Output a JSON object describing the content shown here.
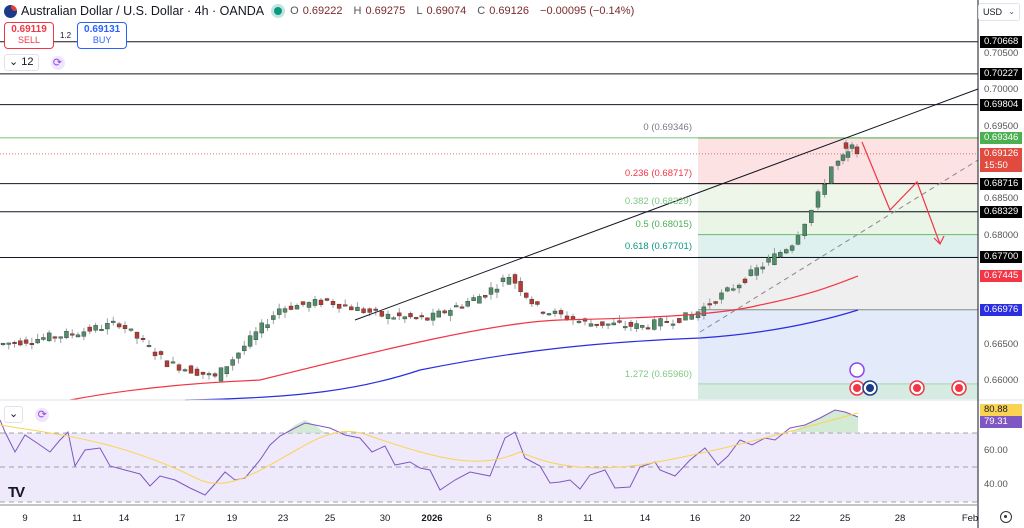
{
  "header": {
    "symbol_title": "Australian Dollar / U.S. Dollar · 4h · OANDA",
    "ohlc": {
      "open_label": "O",
      "open": "0.69222",
      "high_label": "H",
      "high": "0.69275",
      "low_label": "L",
      "low": "0.69074",
      "close_label": "C",
      "close": "0.69126",
      "change": "−0.00095 (−0.14%)"
    }
  },
  "trade": {
    "sell_price": "0.69119",
    "sell_label": "SELL",
    "spread": "1.2",
    "buy_price": "0.69131",
    "buy_label": "BUY"
  },
  "toolbar": {
    "interval_label": "⌄ 12",
    "rsi_collapse": "⌄"
  },
  "currency_selector": "USD",
  "colors": {
    "up": "#4e8f6a",
    "down": "#b93a30",
    "ma_red": "#f23645",
    "ma_blue": "#2a2ee0",
    "rsi": "#7e57c2",
    "rsi_ma": "#fbd352",
    "last_price": "#e04a3f",
    "fib_0": "#4caf50"
  },
  "price_axis": {
    "ticks": [
      "0.70500",
      "0.70000",
      "0.69500",
      "0.68500",
      "0.68000",
      "0.66500",
      "0.66000"
    ],
    "badges": [
      {
        "value": "0.70668",
        "bg": "#000000",
        "fg": "#ffffff"
      },
      {
        "value": "0.70227",
        "bg": "#000000",
        "fg": "#ffffff"
      },
      {
        "value": "0.69804",
        "bg": "#000000",
        "fg": "#ffffff"
      },
      {
        "value": "0.69346",
        "bg": "#4caf50",
        "fg": "#ffffff"
      },
      {
        "value": "0.69126",
        "bg": "#e04a3f",
        "fg": "#ffffff",
        "sub": "15:50"
      },
      {
        "value": "0.68716",
        "bg": "#000000",
        "fg": "#ffffff"
      },
      {
        "value": "0.68329",
        "bg": "#000000",
        "fg": "#ffffff"
      },
      {
        "value": "0.67700",
        "bg": "#000000",
        "fg": "#ffffff"
      },
      {
        "value": "0.67445",
        "bg": "#f23645",
        "fg": "#ffffff"
      },
      {
        "value": "0.66976",
        "bg": "#2a2ee0",
        "fg": "#ffffff"
      }
    ]
  },
  "rsi_axis": {
    "ticks": [
      "60.00",
      "40.00"
    ],
    "badges": [
      {
        "value": "80.88",
        "bg": "#fbd352",
        "fg": "#131722"
      },
      {
        "value": "79.31",
        "bg": "#7e57c2",
        "fg": "#ffffff"
      }
    ]
  },
  "time_axis": [
    "9",
    "11",
    "14",
    "17",
    "19",
    "23",
    "25",
    "30",
    "2026",
    "6",
    "8",
    "11",
    "14",
    "16",
    "20",
    "22",
    "25",
    "28",
    "Feb"
  ],
  "fib_labels": [
    {
      "text": "0 (0.69346)",
      "color": "#787b86"
    },
    {
      "text": "0.236 (0.68717)",
      "color": "#f23645"
    },
    {
      "text": "0.382 (0.68329)",
      "color": "#81c784"
    },
    {
      "text": "0.5 (0.68015)",
      "color": "#4caf50"
    },
    {
      "text": "0.618 (0.67701)",
      "color": "#089981"
    },
    {
      "text": "1.272 (0.65960)",
      "color": "#81c784"
    }
  ],
  "chart_data": {
    "type": "candlestick",
    "title": "Australian Dollar / U.S. Dollar · 4h · OANDA",
    "xlabel": "",
    "ylabel": "USD",
    "ylim": [
      0.658,
      0.7085
    ],
    "x_ticks": [
      "9",
      "11",
      "14",
      "17",
      "19",
      "23",
      "25",
      "30",
      "2026",
      "6",
      "8",
      "11",
      "14",
      "16",
      "20",
      "22",
      "25",
      "28",
      "Feb"
    ],
    "last": {
      "open": 0.69222,
      "high": 0.69275,
      "low": 0.69074,
      "close": 0.69126,
      "change": -0.00095,
      "change_pct": -0.14
    },
    "approx_close_path": [
      {
        "x": "Dec 9",
        "close": 0.665
      },
      {
        "x": "Dec 11",
        "close": 0.6665
      },
      {
        "x": "Dec 14",
        "close": 0.668
      },
      {
        "x": "Dec 17",
        "close": 0.6625
      },
      {
        "x": "Dec 19",
        "close": 0.6605
      },
      {
        "x": "Dec 23",
        "close": 0.67
      },
      {
        "x": "Dec 25",
        "close": 0.671
      },
      {
        "x": "Dec 30",
        "close": 0.669
      },
      {
        "x": "Jan 2",
        "close": 0.6685
      },
      {
        "x": "Jan 6",
        "close": 0.672
      },
      {
        "x": "Jan 7",
        "close": 0.6745
      },
      {
        "x": "Jan 8",
        "close": 0.67
      },
      {
        "x": "Jan 11",
        "close": 0.668
      },
      {
        "x": "Jan 14",
        "close": 0.6675
      },
      {
        "x": "Jan 16",
        "close": 0.669
      },
      {
        "x": "Jan 20",
        "close": 0.6735
      },
      {
        "x": "Jan 22",
        "close": 0.679
      },
      {
        "x": "Jan 23",
        "close": 0.6835
      },
      {
        "x": "Jan 24",
        "close": 0.6895
      },
      {
        "x": "Jan 25",
        "close": 0.69126
      }
    ],
    "horizontal_lines": [
      0.70668,
      0.70227,
      0.69804,
      0.68716,
      0.68329,
      0.677
    ],
    "moving_averages": [
      {
        "name": "MA red",
        "last": 0.67445,
        "color": "#f23645"
      },
      {
        "name": "MA blue",
        "last": 0.66976,
        "color": "#2a2ee0"
      }
    ],
    "fibonacci": [
      {
        "level": 0,
        "price": 0.69346
      },
      {
        "level": 0.236,
        "price": 0.68717
      },
      {
        "level": 0.382,
        "price": 0.68329
      },
      {
        "level": 0.5,
        "price": 0.68015
      },
      {
        "level": 0.618,
        "price": 0.67701
      },
      {
        "level": 1.272,
        "price": 0.6596
      }
    ],
    "projection": "Zig-zag down arrow from ~0.6935 to ~0.6840, rebound to ~0.6870, then down to ~0.6795",
    "rsi": {
      "value": 79.31,
      "ma": 80.88,
      "levels": [
        70,
        50,
        30
      ],
      "ticks": [
        "60.00",
        "40.00"
      ]
    },
    "grid": false
  }
}
